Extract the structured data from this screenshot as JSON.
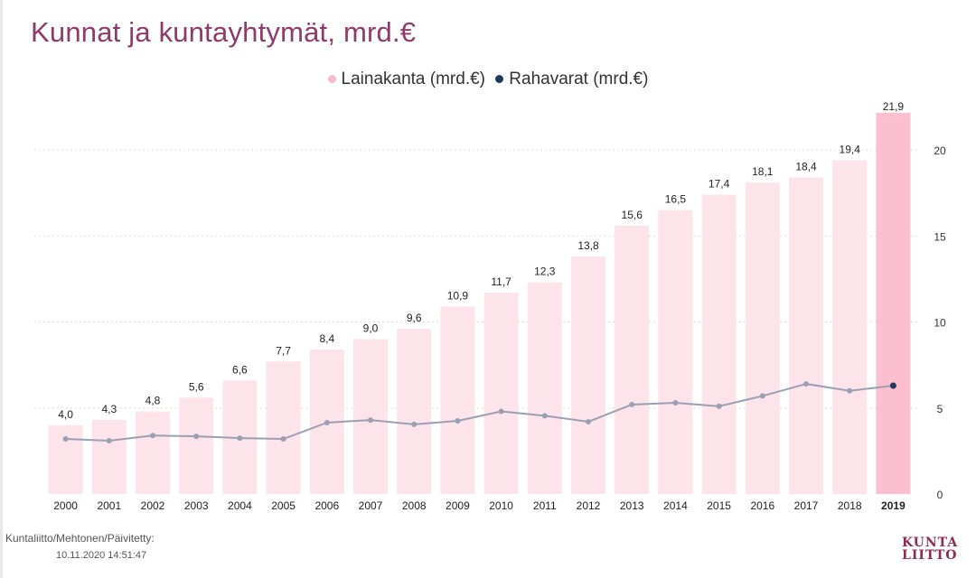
{
  "title": "Kunnat ja kuntayhtymät, mrd.€",
  "legend": [
    {
      "label": "Lainakanta (mrd.€)",
      "color": "#f6b8ca"
    },
    {
      "label": "Rahavarat (mrd.€)",
      "color": "#1f3a5a"
    }
  ],
  "footer": {
    "source": "Kuntaliitto/Mehtonen/Päivitetty:",
    "date": "10.11.2020 14:51:47"
  },
  "logo": {
    "line1": "KUNTA",
    "line2": "LIITTO"
  },
  "colors": {
    "bar": "#fde3ea",
    "bar_highlight": "#fbbfcf",
    "line": "#9aa0b4",
    "marker_highlight": "#1f3a5a",
    "title": "#8e3a6a"
  },
  "chart_data": {
    "type": "bar",
    "categories": [
      "2000",
      "2001",
      "2002",
      "2003",
      "2004",
      "2005",
      "2006",
      "2007",
      "2008",
      "2009",
      "2010",
      "2011",
      "2012",
      "2013",
      "2014",
      "2015",
      "2016",
      "2017",
      "2018",
      "2019"
    ],
    "highlight_category": "2019",
    "series": [
      {
        "name": "Lainakanta (mrd.€)",
        "type": "bar",
        "values": [
          4.0,
          4.3,
          4.8,
          5.6,
          6.6,
          7.7,
          8.4,
          9.0,
          9.6,
          10.9,
          11.7,
          12.3,
          13.8,
          15.6,
          16.5,
          17.4,
          18.1,
          18.4,
          19.4,
          21.9
        ],
        "labels": [
          "4,0",
          "4,3",
          "4,8",
          "5,6",
          "6,6",
          "7,7",
          "8,4",
          "9,0",
          "9,6",
          "10,9",
          "11,7",
          "12,3",
          "13,8",
          "15,6",
          "16,5",
          "17,4",
          "18,1",
          "18,4",
          "19,4",
          "21,9"
        ]
      },
      {
        "name": "Rahavarat (mrd.€)",
        "type": "line",
        "values": [
          3.2,
          3.1,
          3.4,
          3.35,
          3.25,
          3.2,
          4.15,
          4.3,
          4.05,
          4.25,
          4.8,
          4.55,
          4.2,
          5.2,
          5.3,
          5.1,
          5.7,
          6.4,
          6.0,
          6.3
        ]
      }
    ],
    "yaxis": {
      "side": "right",
      "ticks": [
        "0",
        "5",
        "10",
        "15",
        "20"
      ],
      "range": [
        0,
        22
      ]
    },
    "grid": true
  }
}
